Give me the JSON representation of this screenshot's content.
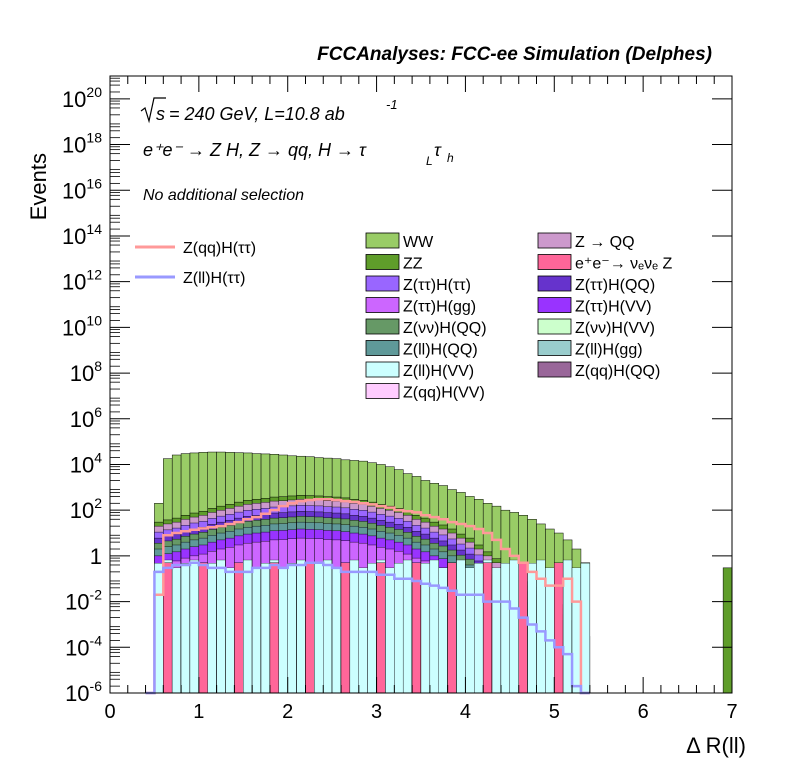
{
  "header": {
    "title": "FCCAnalyses: FCC-ee Simulation (Delphes)"
  },
  "annotations": {
    "sqrt_s": "s",
    "energy_lumi": "= 240 GeV, L=10.8 ab",
    "lumi_exp": "-1",
    "process": "e⁺e⁻ → Z H, Z → qq, H → τ",
    "process_sub1": "L",
    "process_tau2": "τ",
    "process_sub2": "h",
    "selection": "No additional selection"
  },
  "colors": {
    "frame": "#000000",
    "bg": "#ffffff"
  },
  "chart_data": {
    "type": "bar",
    "xlabel": "Δ R(ll)",
    "ylabel": "Events",
    "xlim": [
      0,
      7
    ],
    "ylim": [
      1e-06,
      1e+21
    ],
    "yscale": "log",
    "xticks": [
      "0",
      "1",
      "2",
      "3",
      "4",
      "5",
      "6",
      "7"
    ],
    "yticks": [
      {
        "base": "10",
        "exp": "20"
      },
      {
        "base": "10",
        "exp": "18"
      },
      {
        "base": "10",
        "exp": "16"
      },
      {
        "base": "10",
        "exp": "14"
      },
      {
        "base": "10",
        "exp": "12"
      },
      {
        "base": "10",
        "exp": "10"
      },
      {
        "base": "10",
        "exp": "8"
      },
      {
        "base": "10",
        "exp": "6"
      },
      {
        "base": "10",
        "exp": "4"
      },
      {
        "base": "10",
        "exp": "2"
      },
      {
        "base": "1",
        "exp": ""
      },
      {
        "base": "10",
        "exp": "-2"
      },
      {
        "base": "10",
        "exp": "-4"
      },
      {
        "base": "10",
        "exp": "-6"
      }
    ],
    "stack_envelope": {
      "bin_width": 0.1,
      "x_start": 0.4,
      "WW_top": [
        0,
        200,
        18000.0,
        26000.0,
        30000.0,
        32000.0,
        34000.0,
        35000.0,
        35000.0,
        34000.0,
        33000.0,
        32000.0,
        30000.0,
        29000.0,
        28000.0,
        26000.0,
        24000.0,
        23000.0,
        22000.0,
        20000.0,
        19000.0,
        18000.0,
        16000.0,
        15000.0,
        14000.0,
        12000.0,
        10000.0,
        8000,
        6000,
        4000,
        3000,
        2000,
        1500,
        1200,
        800,
        600,
        400,
        300,
        200,
        150,
        100,
        80,
        60,
        40,
        25,
        15,
        10,
        5,
        2,
        0.5
      ],
      "ZZ_top": [
        0,
        20,
        25,
        30,
        40,
        50,
        60,
        80,
        100,
        120,
        150,
        180,
        200,
        220,
        250,
        260,
        280,
        300,
        290,
        280,
        260,
        250,
        230,
        200,
        180,
        150,
        120,
        100,
        80,
        60,
        40,
        30,
        20,
        15,
        10,
        6,
        4,
        2,
        1,
        0.5,
        0.3,
        0.2,
        0.1,
        0.05,
        0.02,
        0.01,
        0.01,
        0.005,
        0.001,
        0.0002
      ]
    },
    "series": [
      {
        "name": "WW",
        "color": "#99cc66",
        "legend_col": 0
      },
      {
        "name": "ZZ",
        "color": "#5f9d2a",
        "legend_col": 0
      },
      {
        "name": "Z(ττ)H(ττ)",
        "color": "#9966ff",
        "legend_col": 0
      },
      {
        "name": "Z(ττ)H(gg)",
        "color": "#cc66ff",
        "legend_col": 0
      },
      {
        "name": "Z(νν)H(QQ)",
        "color": "#669966",
        "legend_col": 0
      },
      {
        "name": "Z(ll)H(QQ)",
        "color": "#5f9999",
        "legend_col": 0
      },
      {
        "name": "Z(ll)H(VV)",
        "color": "#ccffff",
        "legend_col": 0
      },
      {
        "name": "Z(qq)H(VV)",
        "color": "#ffccff",
        "legend_col": 0
      },
      {
        "name": "Z → QQ",
        "color": "#cc99cc",
        "legend_col": 1
      },
      {
        "name": "e⁺e⁻→ νₑνₑ Z",
        "color": "#ff6699",
        "legend_col": 1
      },
      {
        "name": "Z(ττ)H(QQ)",
        "color": "#6633cc",
        "legend_col": 1
      },
      {
        "name": "Z(ττ)H(VV)",
        "color": "#9933ff",
        "legend_col": 1
      },
      {
        "name": "Z(νν)H(VV)",
        "color": "#ccffcc",
        "legend_col": 1
      },
      {
        "name": "Z(ll)H(gg)",
        "color": "#99cccc",
        "legend_col": 1
      },
      {
        "name": "Z(qq)H(QQ)",
        "color": "#996699",
        "legend_col": 1
      }
    ],
    "signals": [
      {
        "name": "Z(qq)H(ττ)",
        "color": "#ff9999",
        "values": [
          0,
          0.02,
          8,
          10,
          12,
          14,
          16,
          18,
          20,
          25,
          30,
          40,
          50,
          70,
          100,
          150,
          200,
          250,
          280,
          300,
          300,
          280,
          250,
          230,
          200,
          180,
          150,
          130,
          100,
          90,
          80,
          60,
          50,
          40,
          30,
          25,
          20,
          15,
          10,
          5,
          2,
          1,
          0.5,
          0.2,
          0.1,
          0.05,
          0.05,
          0.1,
          0.01,
          9e-07
        ]
      },
      {
        "name": "Z(ll)H(ττ)",
        "color": "#9999ff",
        "values": [
          0,
          0.2,
          0.3,
          0.4,
          0.4,
          0.5,
          0.4,
          0.3,
          0.3,
          0.2,
          0.2,
          0.2,
          0.3,
          0.3,
          0.4,
          0.3,
          0.4,
          0.4,
          0.5,
          0.5,
          0.4,
          0.3,
          0.2,
          0.2,
          0.2,
          0.2,
          0.15,
          0.15,
          0.1,
          0.1,
          0.08,
          0.06,
          0.05,
          0.04,
          0.03,
          0.02,
          0.02,
          0.02,
          0.01,
          0.01,
          0.01,
          0.005,
          0.002,
          0.001,
          0.0005,
          0.0002,
          0.0001,
          5e-05,
          2e-06,
          9e-07
        ]
      }
    ]
  }
}
